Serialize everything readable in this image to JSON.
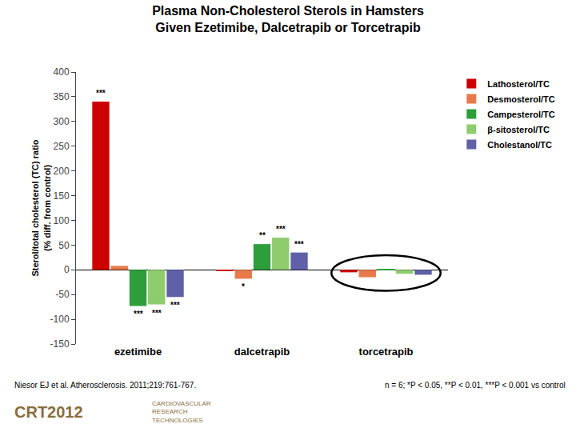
{
  "chart_data": {
    "type": "bar",
    "title": "Plasma Non-Cholesterol Sterols in Hamsters\nGiven Ezetimibe, Dalcetrapib or Torcetrapib",
    "y_label": "Sterol/total cholesterol (TC) ratio\n(% diff. from control)",
    "categories": [
      "ezetimibe",
      "dalcetrapib",
      "torcetrapib"
    ],
    "series": [
      {
        "name": "Lathosterol/TC",
        "color": "#cc0000",
        "values": [
          340,
          -2,
          -5
        ],
        "annotations": [
          "***",
          null,
          null
        ]
      },
      {
        "name": "Desmosterol/TC",
        "color": "#e8794a",
        "values": [
          8,
          -18,
          -15
        ],
        "annotations": [
          null,
          "*",
          null
        ]
      },
      {
        "name": "Campesterol/TC",
        "color": "#2e9e3a",
        "values": [
          -73,
          52,
          2
        ],
        "annotations": [
          "***",
          "**",
          null
        ]
      },
      {
        "name": "β-sitosterol/TC",
        "color": "#8fcc6e",
        "values": [
          -70,
          65,
          -8
        ],
        "annotations": [
          "***",
          "***",
          null
        ]
      },
      {
        "name": "Cholestanol/TC",
        "color": "#6060a8",
        "values": [
          -55,
          35,
          -10
        ],
        "annotations": [
          "***",
          "***",
          null
        ]
      }
    ],
    "ylim": [
      -150,
      400
    ],
    "yticks": [
      -150,
      -100,
      -50,
      0,
      50,
      100,
      150,
      200,
      250,
      300,
      350,
      400
    ],
    "grid": false,
    "legend": "right",
    "footnotes": [
      "Niesor EJ et al. Atherosclerosis. 2011;219:761-767.",
      "n = 6; *P < 0.05, **P < 0.01, ***P < 0.001 vs control"
    ],
    "logo_text": [
      "CRT2012",
      "CARDIOVASCULAR\nRESEARCH\nTECHNOLOGIES"
    ]
  }
}
